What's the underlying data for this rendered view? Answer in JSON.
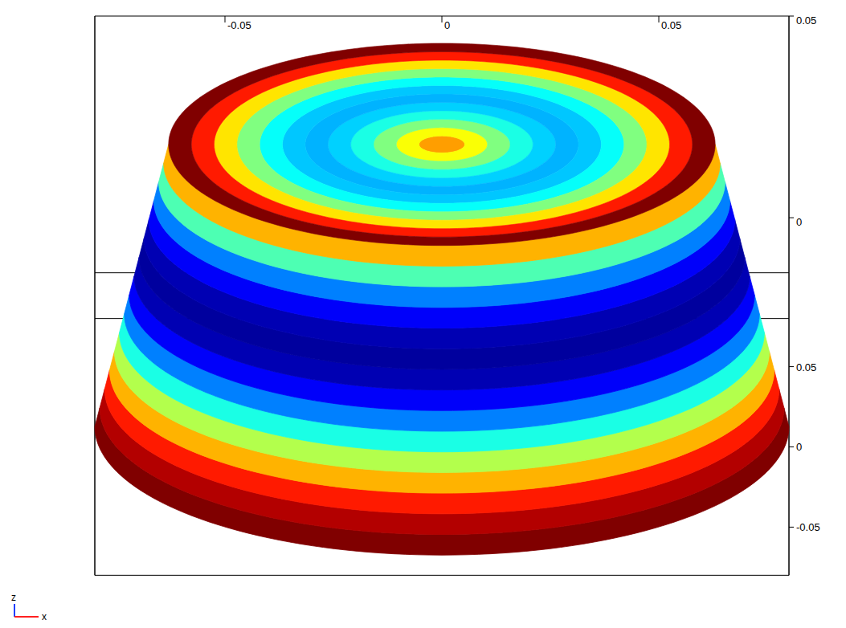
{
  "chart_data": {
    "type": "surface3d",
    "xlabel": "x",
    "zlabel": "z",
    "xlim": [
      -0.08,
      0.08
    ],
    "ylim": [
      -0.08,
      0.08
    ],
    "zlim": [
      -0.025,
      0.05
    ],
    "xticks": [
      -0.05,
      0,
      0.05
    ],
    "yticks": [
      -0.05,
      0,
      0.05
    ],
    "zticks": [
      0,
      0.05
    ],
    "geometry": {
      "bottom_radius": 0.08,
      "top_radius": 0.063,
      "z_bottom": -0.02,
      "z_top": 0.05
    },
    "side_values": [
      1.0,
      0.95,
      0.85,
      0.7,
      0.55,
      0.4,
      0.25,
      0.12,
      0.05,
      0.03,
      0.05,
      0.12,
      0.25,
      0.45,
      0.7
    ],
    "top_values": [
      0.72,
      0.62,
      0.5,
      0.4,
      0.33,
      0.3,
      0.32,
      0.38,
      0.5,
      0.65,
      0.85,
      1.0
    ],
    "color_range": [
      0,
      1
    ]
  }
}
